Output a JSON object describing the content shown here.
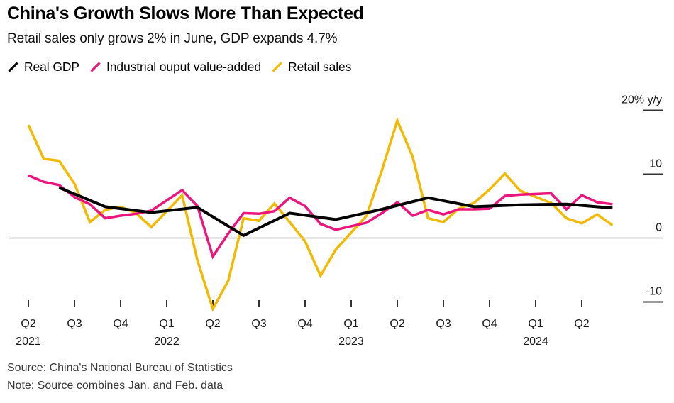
{
  "chart_data": {
    "type": "line",
    "title": "China's Growth Slows More Than Expected",
    "subtitle": "Retail sales only grows 2% in June, GDP expands 4.7%",
    "y_axis": {
      "unit": "% y/y",
      "range": [
        -13,
        21
      ],
      "grid": false,
      "ticks": [
        {
          "label": "20% y/y",
          "value": 20
        },
        {
          "label": "10",
          "value": 10
        },
        {
          "label": "0",
          "value": 0
        },
        {
          "label": "-10",
          "value": -10
        }
      ]
    },
    "x_axis": {
      "note": "quarterly ticks, monthly data points, Jan+Feb combined",
      "ticks": [
        {
          "label": "Q2",
          "t": "2021-04",
          "year": "2021"
        },
        {
          "label": "Q3",
          "t": "2021-07"
        },
        {
          "label": "Q4",
          "t": "2021-10"
        },
        {
          "label": "Q1",
          "t": "2022-01",
          "year": "2022"
        },
        {
          "label": "Q2",
          "t": "2022-04"
        },
        {
          "label": "Q3",
          "t": "2022-07"
        },
        {
          "label": "Q4",
          "t": "2022-10"
        },
        {
          "label": "Q1",
          "t": "2023-01",
          "year": "2023"
        },
        {
          "label": "Q2",
          "t": "2023-04"
        },
        {
          "label": "Q3",
          "t": "2023-07"
        },
        {
          "label": "Q4",
          "t": "2023-10"
        },
        {
          "label": "Q1",
          "t": "2024-01",
          "year": "2024"
        },
        {
          "label": "Q2",
          "t": "2024-04"
        }
      ]
    },
    "colors": {
      "zero_line": "#4a4a4a",
      "tick": "#333333",
      "axis_text": "#1a1a1a"
    },
    "series": [
      {
        "id": "real-gdp",
        "name": "Real GDP",
        "color": "#000000",
        "stroke_width": 4,
        "points": [
          {
            "t": "2021-06",
            "v": 7.9
          },
          {
            "t": "2021-09",
            "v": 4.9
          },
          {
            "t": "2021-12",
            "v": 4.0
          },
          {
            "t": "2022-03",
            "v": 4.8
          },
          {
            "t": "2022-06",
            "v": 0.4
          },
          {
            "t": "2022-09",
            "v": 3.9
          },
          {
            "t": "2022-12",
            "v": 2.9
          },
          {
            "t": "2023-03",
            "v": 4.5
          },
          {
            "t": "2023-06",
            "v": 6.3
          },
          {
            "t": "2023-09",
            "v": 4.9
          },
          {
            "t": "2023-12",
            "v": 5.2
          },
          {
            "t": "2024-03",
            "v": 5.3
          },
          {
            "t": "2024-06",
            "v": 4.7
          }
        ]
      },
      {
        "id": "industrial-output",
        "name": "Industrial ouput value-added",
        "color": "#ED147E",
        "stroke_width": 3.5,
        "points": [
          {
            "t": "2021-04",
            "v": 9.8
          },
          {
            "t": "2021-05",
            "v": 8.8
          },
          {
            "t": "2021-06",
            "v": 8.3
          },
          {
            "t": "2021-07",
            "v": 6.4
          },
          {
            "t": "2021-08",
            "v": 5.3
          },
          {
            "t": "2021-09",
            "v": 3.1
          },
          {
            "t": "2021-10",
            "v": 3.5
          },
          {
            "t": "2021-11",
            "v": 3.8
          },
          {
            "t": "2021-12",
            "v": 4.3
          },
          {
            "t": "2022-02",
            "v": 7.5
          },
          {
            "t": "2022-03",
            "v": 5.0
          },
          {
            "t": "2022-04",
            "v": -2.9
          },
          {
            "t": "2022-05",
            "v": 0.7
          },
          {
            "t": "2022-06",
            "v": 3.9
          },
          {
            "t": "2022-07",
            "v": 3.8
          },
          {
            "t": "2022-08",
            "v": 4.2
          },
          {
            "t": "2022-09",
            "v": 6.3
          },
          {
            "t": "2022-10",
            "v": 5.0
          },
          {
            "t": "2022-11",
            "v": 2.2
          },
          {
            "t": "2022-12",
            "v": 1.3
          },
          {
            "t": "2023-02",
            "v": 2.4
          },
          {
            "t": "2023-03",
            "v": 3.9
          },
          {
            "t": "2023-04",
            "v": 5.6
          },
          {
            "t": "2023-05",
            "v": 3.5
          },
          {
            "t": "2023-06",
            "v": 4.4
          },
          {
            "t": "2023-07",
            "v": 3.7
          },
          {
            "t": "2023-08",
            "v": 4.5
          },
          {
            "t": "2023-09",
            "v": 4.5
          },
          {
            "t": "2023-10",
            "v": 4.6
          },
          {
            "t": "2023-11",
            "v": 6.6
          },
          {
            "t": "2023-12",
            "v": 6.8
          },
          {
            "t": "2024-02",
            "v": 7.0
          },
          {
            "t": "2024-03",
            "v": 4.5
          },
          {
            "t": "2024-04",
            "v": 6.7
          },
          {
            "t": "2024-05",
            "v": 5.6
          },
          {
            "t": "2024-06",
            "v": 5.3
          }
        ]
      },
      {
        "id": "retail-sales",
        "name": "Retail sales",
        "color": "#F3B800",
        "stroke_width": 3.5,
        "points": [
          {
            "t": "2021-04",
            "v": 17.7
          },
          {
            "t": "2021-05",
            "v": 12.4
          },
          {
            "t": "2021-06",
            "v": 12.1
          },
          {
            "t": "2021-07",
            "v": 8.5
          },
          {
            "t": "2021-08",
            "v": 2.5
          },
          {
            "t": "2021-09",
            "v": 4.4
          },
          {
            "t": "2021-10",
            "v": 4.9
          },
          {
            "t": "2021-11",
            "v": 3.9
          },
          {
            "t": "2021-12",
            "v": 1.7
          },
          {
            "t": "2022-02",
            "v": 6.7
          },
          {
            "t": "2022-03",
            "v": -3.5
          },
          {
            "t": "2022-04",
            "v": -11.1
          },
          {
            "t": "2022-05",
            "v": -6.7
          },
          {
            "t": "2022-06",
            "v": 3.1
          },
          {
            "t": "2022-07",
            "v": 2.7
          },
          {
            "t": "2022-08",
            "v": 5.4
          },
          {
            "t": "2022-09",
            "v": 2.5
          },
          {
            "t": "2022-10",
            "v": -0.5
          },
          {
            "t": "2022-11",
            "v": -5.9
          },
          {
            "t": "2022-12",
            "v": -1.8
          },
          {
            "t": "2023-02",
            "v": 3.5
          },
          {
            "t": "2023-03",
            "v": 10.6
          },
          {
            "t": "2023-04",
            "v": 18.4
          },
          {
            "t": "2023-05",
            "v": 12.7
          },
          {
            "t": "2023-06",
            "v": 3.1
          },
          {
            "t": "2023-07",
            "v": 2.5
          },
          {
            "t": "2023-08",
            "v": 4.6
          },
          {
            "t": "2023-09",
            "v": 5.5
          },
          {
            "t": "2023-10",
            "v": 7.6
          },
          {
            "t": "2023-11",
            "v": 10.1
          },
          {
            "t": "2023-12",
            "v": 7.4
          },
          {
            "t": "2024-02",
            "v": 5.5
          },
          {
            "t": "2024-03",
            "v": 3.1
          },
          {
            "t": "2024-04",
            "v": 2.3
          },
          {
            "t": "2024-05",
            "v": 3.7
          },
          {
            "t": "2024-06",
            "v": 2.0
          }
        ]
      }
    ]
  },
  "footer": {
    "source": "Source: China's National Bureau of Statistics",
    "note": "Note: Source combines Jan. and Feb. data"
  }
}
